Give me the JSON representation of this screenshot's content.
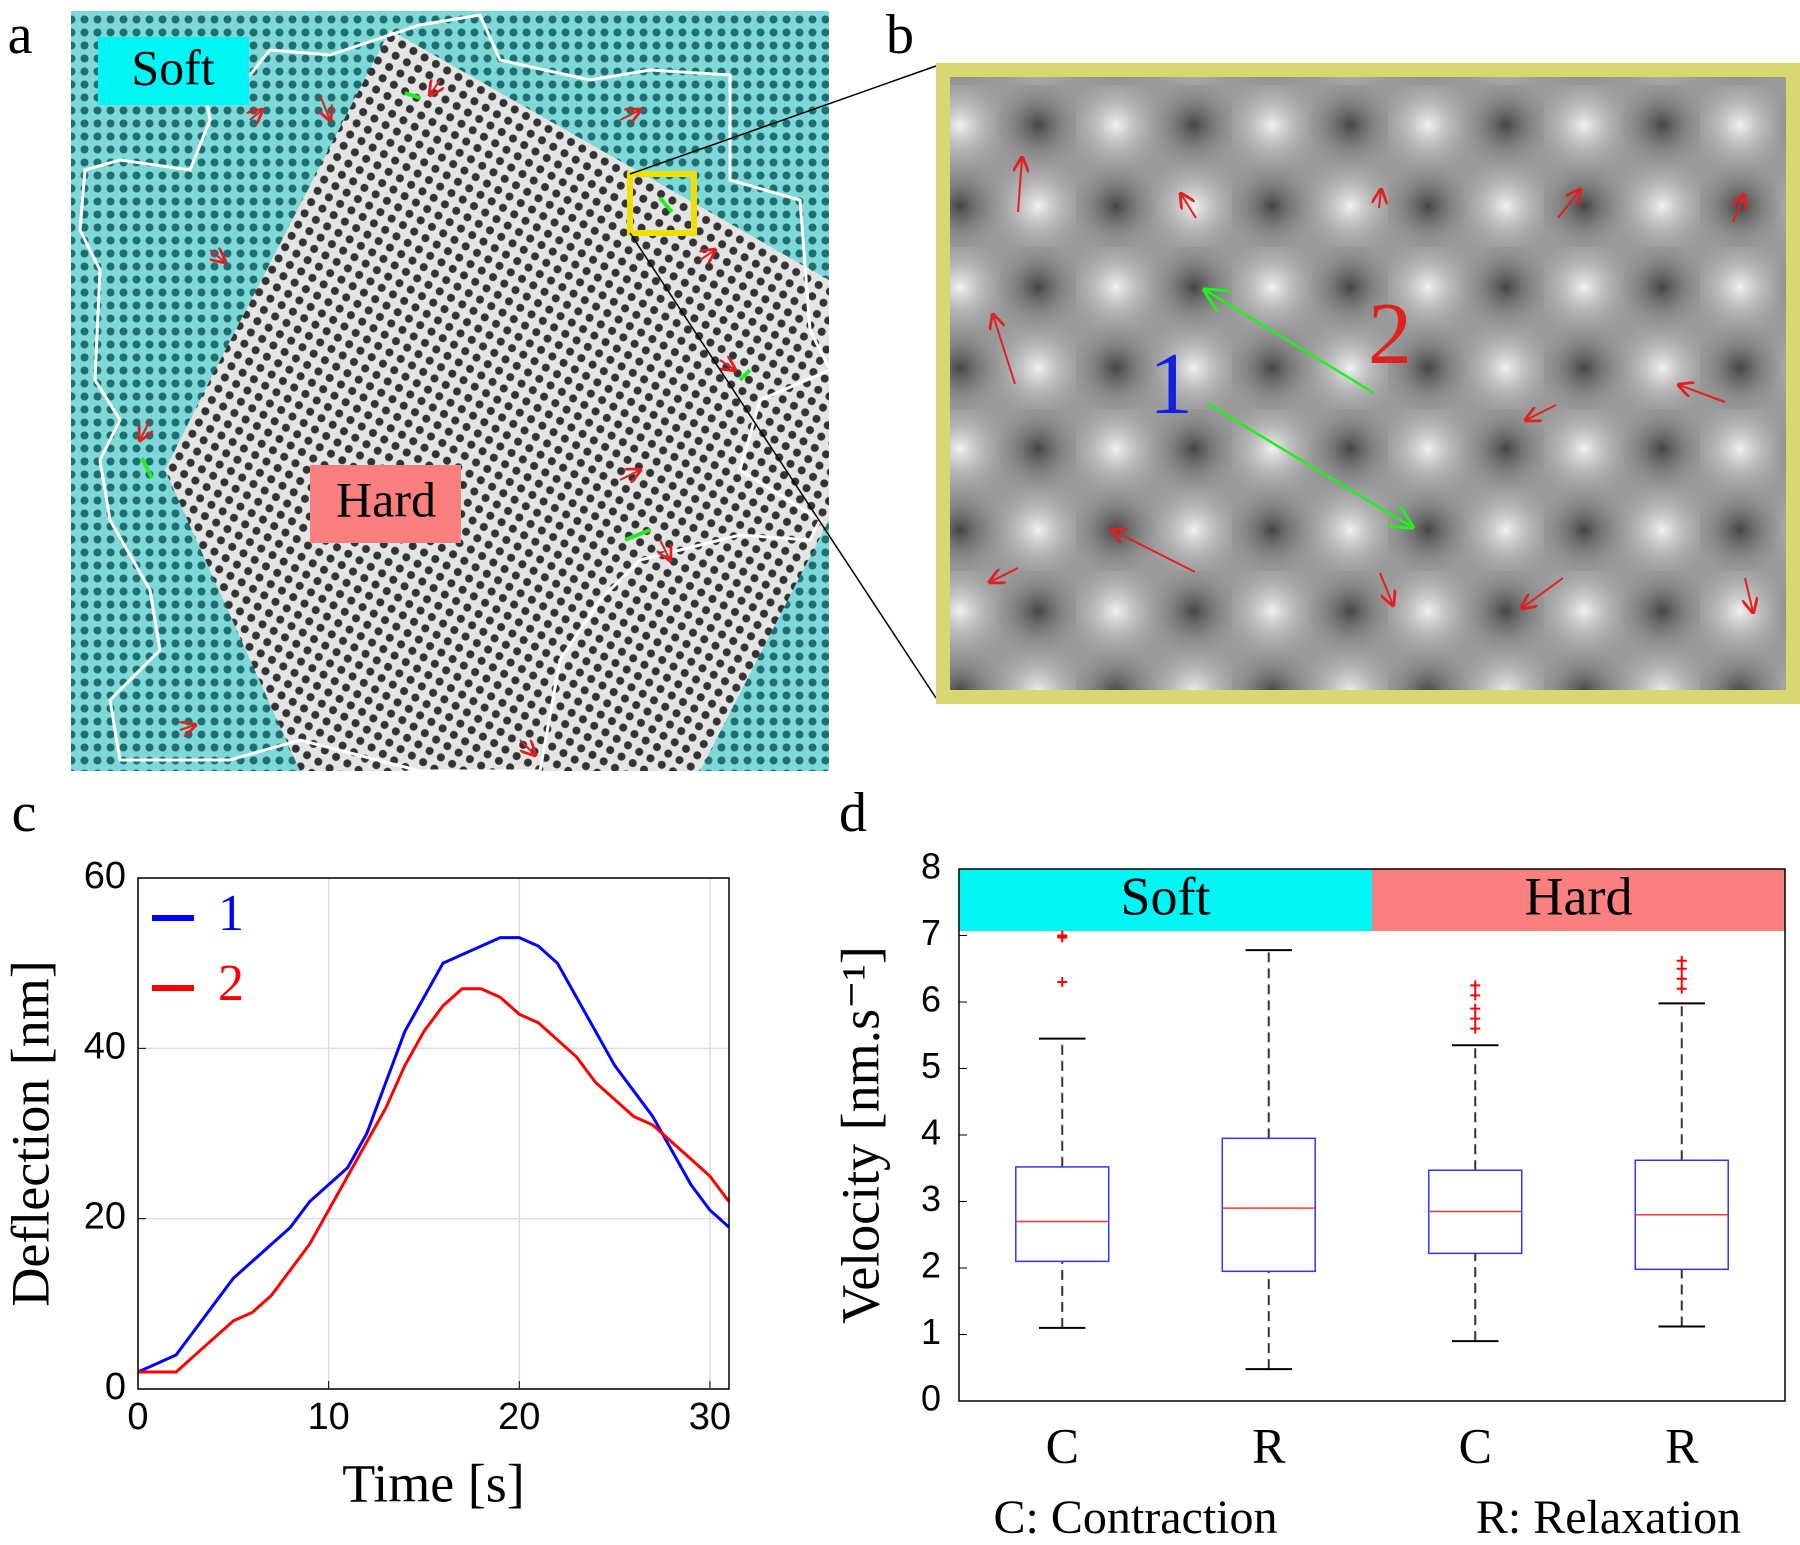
{
  "panel_labels": [
    "a",
    "b",
    "c",
    "d"
  ],
  "image_a": {
    "soft_label": "Soft",
    "hard_label": "Hard"
  },
  "image_b": {
    "point_1": "1",
    "point_2": "2"
  },
  "chart_data": [
    {
      "type": "line",
      "xlabel": "Time [s]",
      "ylabel": "Deflection [nm]",
      "x": [
        0,
        1,
        2,
        3,
        4,
        5,
        6,
        7,
        8,
        9,
        10,
        11,
        12,
        13,
        14,
        15,
        16,
        17,
        18,
        19,
        20,
        21,
        22,
        23,
        24,
        25,
        26,
        27,
        28,
        29,
        30,
        31
      ],
      "series": [
        {
          "name": "1",
          "color": "#0000ff",
          "values": [
            2,
            3,
            4,
            7,
            10,
            13,
            15,
            17,
            19,
            22,
            24,
            26,
            30,
            36,
            42,
            46,
            50,
            51,
            52,
            53,
            53,
            52,
            50,
            46,
            42,
            38,
            35,
            32,
            28,
            24,
            21,
            19
          ]
        },
        {
          "name": "2",
          "color": "#ff0000",
          "values": [
            2,
            2,
            2,
            4,
            6,
            8,
            9,
            11,
            14,
            17,
            21,
            25,
            29,
            33,
            38,
            42,
            45,
            47,
            47,
            46,
            44,
            43,
            41,
            39,
            36,
            34,
            32,
            31,
            29,
            27,
            25,
            22
          ]
        }
      ],
      "xlim": [
        0,
        31
      ],
      "xticks": [
        0,
        10,
        20,
        30
      ],
      "ylim": [
        0,
        60
      ],
      "yticks": [
        0,
        20,
        40,
        60
      ],
      "grid": true,
      "legend": "northwest"
    },
    {
      "type": "box",
      "ylabel": "Velocity [nm.s⁻¹]",
      "categories": [
        "C",
        "R",
        "C",
        "R"
      ],
      "groups": [
        {
          "name": "Soft",
          "color": "#00f5f5"
        },
        {
          "name": "Hard",
          "color": "#fa8080"
        }
      ],
      "boxes": [
        {
          "min": 1.1,
          "q1": 2.1,
          "median": 2.7,
          "q3": 3.52,
          "max": 5.45,
          "outliers": [
            6.3,
            6.97,
            7.0
          ]
        },
        {
          "min": 0.48,
          "q1": 1.95,
          "median": 2.9,
          "q3": 3.95,
          "max": 6.78,
          "outliers": []
        },
        {
          "min": 0.9,
          "q1": 2.22,
          "median": 2.85,
          "q3": 3.47,
          "max": 5.35,
          "outliers": [
            5.6,
            5.75,
            5.9,
            6.1,
            6.25
          ]
        },
        {
          "min": 1.12,
          "q1": 1.98,
          "median": 2.8,
          "q3": 3.62,
          "max": 5.98,
          "outliers": [
            6.2,
            6.35,
            6.5,
            6.62
          ]
        }
      ],
      "box_color": "#3333ff",
      "median_color": "#ff3333",
      "outlier_color": "#ff0000",
      "ylim": [
        0,
        8
      ],
      "yticks": [
        0,
        1,
        2,
        3,
        4,
        5,
        6,
        7,
        8
      ],
      "footnotes": [
        "C: Contraction",
        "R: Relaxation"
      ]
    }
  ]
}
